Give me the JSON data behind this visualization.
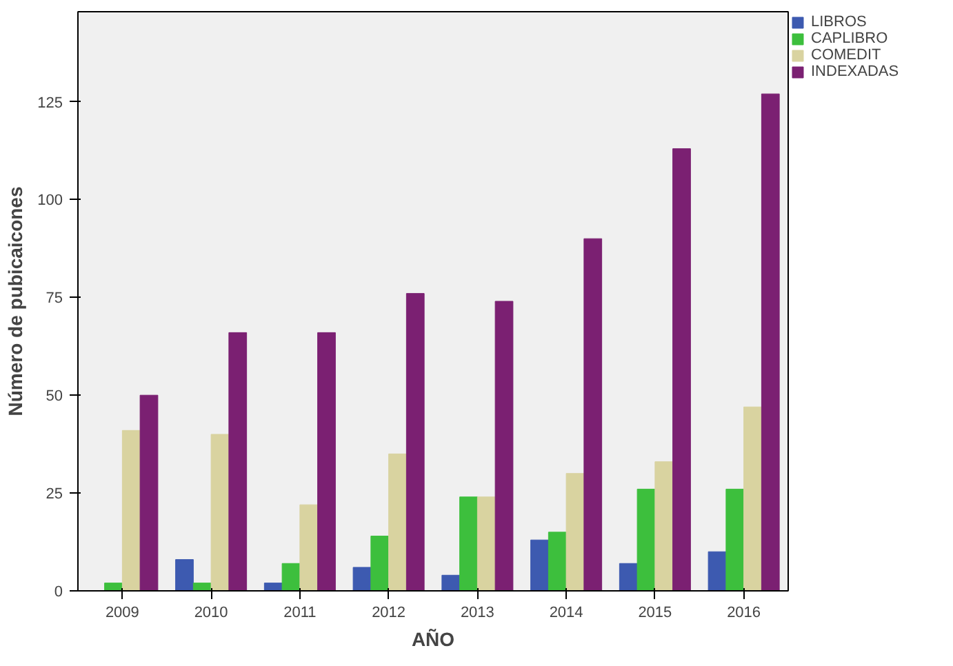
{
  "chart_data": {
    "type": "bar",
    "xlabel": "AÑO",
    "ylabel": "Número de pubicaicones",
    "categories": [
      "2009",
      "2010",
      "2011",
      "2012",
      "2013",
      "2014",
      "2015",
      "2016"
    ],
    "series": [
      {
        "name": "LIBROS",
        "color": "#3d5ab0",
        "values": [
          0,
          8,
          2,
          6,
          4,
          13,
          7,
          10
        ]
      },
      {
        "name": "CAPLIBRO",
        "color": "#3dbf3d",
        "values": [
          2,
          2,
          7,
          14,
          24,
          15,
          26,
          26
        ]
      },
      {
        "name": "COMEDIT",
        "color": "#d9d3a0",
        "values": [
          41,
          40,
          22,
          35,
          24,
          30,
          33,
          47
        ]
      },
      {
        "name": "INDEXADAS",
        "color": "#7b2072",
        "values": [
          50,
          66,
          66,
          76,
          74,
          90,
          113,
          127
        ]
      }
    ],
    "ylim": [
      0,
      148
    ],
    "yticks": [
      0,
      25,
      50,
      75,
      100,
      125
    ],
    "grid": false,
    "legend": "top right"
  }
}
